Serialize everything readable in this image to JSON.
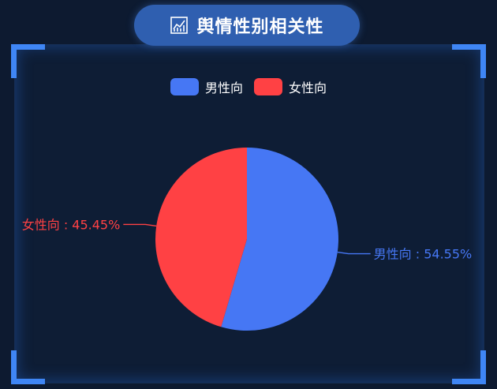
{
  "header": {
    "title": "舆情性别相关性",
    "icon": "line-chart-icon"
  },
  "legend": {
    "items": [
      {
        "label": "男性向",
        "color": "#4677f4"
      },
      {
        "label": "女性向",
        "color": "#ff4144"
      }
    ]
  },
  "colors": {
    "background": "#0d1a30",
    "accent": "#3f86f5",
    "title_pill": "#2f5fb0"
  },
  "chart_data": {
    "type": "pie",
    "title": "",
    "series": [
      {
        "name": "男性向",
        "value": 54.55,
        "color": "#4677f4"
      },
      {
        "name": "女性向",
        "value": 45.45,
        "color": "#ff4144"
      }
    ],
    "labels": [
      "男性向 : 54.55%",
      "女性向 : 45.45%"
    ],
    "legend_position": "top-center"
  }
}
